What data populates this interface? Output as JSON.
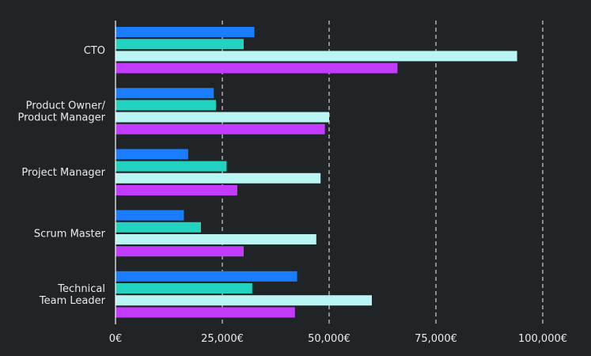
{
  "chart_data": {
    "type": "bar",
    "orientation": "horizontal",
    "categories": [
      [
        "CTO"
      ],
      [
        "Product Owner/",
        "Product Manager"
      ],
      [
        "Project Manager"
      ],
      [
        "Scrum Master"
      ],
      [
        "Technical",
        "Team Leader"
      ]
    ],
    "series": [
      {
        "color": "#1a7dff",
        "values": [
          32500,
          23000,
          17000,
          16000,
          42500
        ]
      },
      {
        "color": "#22d3c0",
        "values": [
          30000,
          23500,
          26000,
          20000,
          32000
        ]
      },
      {
        "color": "#b9f6f3",
        "values": [
          94000,
          50000,
          48000,
          47000,
          60000
        ]
      },
      {
        "color": "#c23bff",
        "values": [
          66000,
          49000,
          28500,
          30000,
          42000
        ]
      }
    ],
    "xlim": [
      0,
      100000
    ],
    "ticks": [
      0,
      25000,
      50000,
      75000,
      100000
    ],
    "tick_labels": [
      "0€",
      "25,000€",
      "50,000€",
      "75,000€",
      "100,000€"
    ],
    "grid": "vertical dashed",
    "legend": "none",
    "title": "",
    "xlabel": "",
    "ylabel": ""
  }
}
